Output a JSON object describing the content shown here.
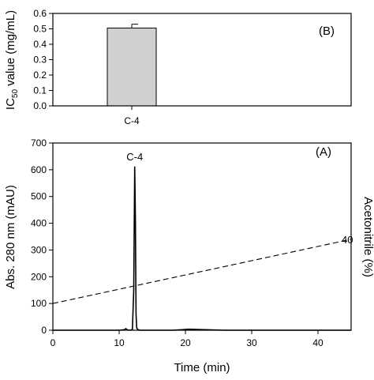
{
  "chart_data": [
    {
      "type": "bar",
      "panel_label": "(B)",
      "categories": [
        "C-4"
      ],
      "values": [
        0.505
      ],
      "errors": [
        0.025
      ],
      "ylabel": {
        "main": "IC",
        "sub": "50",
        "rest": " value (mg/mL)"
      },
      "ylim": [
        0,
        0.6
      ],
      "yticks": [
        0.0,
        0.1,
        0.2,
        0.3,
        0.4,
        0.5,
        0.6
      ],
      "bar_color": "#d0d0d0"
    },
    {
      "type": "line",
      "panel_label": "(A)",
      "xlabel": "Time (min)",
      "ylabel": "Abs. 280 nm (mAU)",
      "y2label": "Acetonitrile (%)",
      "xlim": [
        0,
        45
      ],
      "ylim": [
        0,
        700
      ],
      "xticks": [
        0,
        10,
        20,
        30,
        40
      ],
      "yticks": [
        0,
        100,
        200,
        300,
        400,
        500,
        600,
        700
      ],
      "peak_label": "C-4",
      "series": [
        {
          "style": "solid",
          "x": [
            0,
            5,
            10,
            10.8,
            11.0,
            11.3,
            11.6,
            12.0,
            12.2,
            12.35,
            12.45,
            12.55,
            12.65,
            12.85,
            13.2,
            15,
            18,
            19.5,
            20.5,
            21.5,
            23,
            26,
            35,
            45
          ],
          "y": [
            0,
            0,
            0,
            2,
            6,
            1,
            0,
            2,
            150,
            612,
            420,
            60,
            8,
            2,
            0,
            0,
            0,
            2,
            4,
            3,
            2,
            0,
            0,
            0
          ]
        },
        {
          "style": "dashed",
          "x": [
            0,
            45
          ],
          "y": [
            100,
            340
          ],
          "end_label": "40"
        }
      ]
    }
  ]
}
